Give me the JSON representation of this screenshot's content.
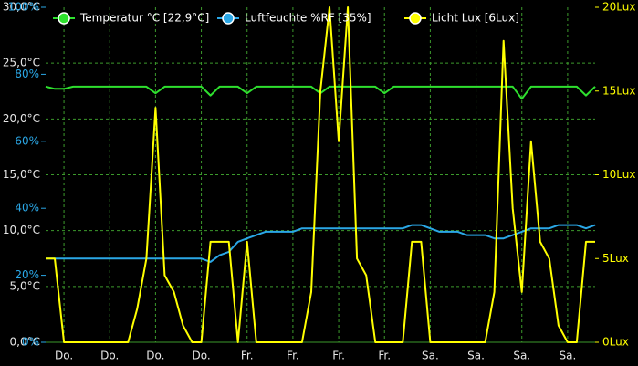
{
  "chart_data": {
    "type": "line",
    "xlim": [
      0,
      60
    ],
    "xticks": [
      {
        "value": 2,
        "label": "Do."
      },
      {
        "value": 7,
        "label": "Do."
      },
      {
        "value": 12,
        "label": "Do."
      },
      {
        "value": 17,
        "label": "Do."
      },
      {
        "value": 22,
        "label": "Fr."
      },
      {
        "value": 27,
        "label": "Fr."
      },
      {
        "value": 32,
        "label": "Fr."
      },
      {
        "value": 37,
        "label": "Fr."
      },
      {
        "value": 42,
        "label": "Sa."
      },
      {
        "value": 47,
        "label": "Sa."
      },
      {
        "value": 52,
        "label": "Sa."
      },
      {
        "value": 57,
        "label": "Sa."
      }
    ],
    "ylim": [
      0,
      30
    ],
    "yticks": [
      {
        "value": 0,
        "label": "0,0°C"
      },
      {
        "value": 5,
        "label": "5,0°C"
      },
      {
        "value": 10,
        "label": "10,0°C"
      },
      {
        "value": 15,
        "label": "15,0°C"
      },
      {
        "value": 20,
        "label": "20,0°C"
      },
      {
        "value": 25,
        "label": "25,0°C"
      },
      {
        "value": 30,
        "label": "30,0°C"
      }
    ],
    "y3lim": [
      0,
      100
    ],
    "y3ticks": [
      {
        "value": 0,
        "label": "0%"
      },
      {
        "value": 20,
        "label": "20%"
      },
      {
        "value": 40,
        "label": "40%"
      },
      {
        "value": 60,
        "label": "60%"
      },
      {
        "value": 80,
        "label": "80%"
      },
      {
        "value": 100,
        "label": "100%"
      }
    ],
    "y2lim": [
      0,
      20
    ],
    "y2ticks": [
      {
        "value": 0,
        "label": "0Lux"
      },
      {
        "value": 5,
        "label": "5Lux"
      },
      {
        "value": 10,
        "label": "10Lux"
      },
      {
        "value": 15,
        "label": "15Lux"
      },
      {
        "value": 20,
        "label": "20Lux"
      }
    ],
    "grid": true,
    "series": [
      {
        "name": "Temperatur °C [22,9°C]",
        "color": "#2ee02e",
        "axis": "y",
        "values": [
          22.9,
          22.7,
          22.7,
          22.9,
          22.9,
          22.9,
          22.9,
          22.9,
          22.9,
          22.9,
          22.9,
          22.9,
          22.3,
          22.9,
          22.9,
          22.9,
          22.9,
          22.9,
          22.1,
          22.9,
          22.9,
          22.9,
          22.3,
          22.9,
          22.9,
          22.9,
          22.9,
          22.9,
          22.9,
          22.9,
          22.3,
          22.9,
          22.9,
          22.9,
          22.9,
          22.9,
          22.9,
          22.3,
          22.9,
          22.9,
          22.9,
          22.9,
          22.9,
          22.9,
          22.9,
          22.9,
          22.9,
          22.9,
          22.9,
          22.9,
          22.9,
          22.9,
          21.8,
          22.9,
          22.9,
          22.9,
          22.9,
          22.9,
          22.9,
          22.1,
          22.9
        ]
      },
      {
        "name": "Luftfeuchte %RF [35%]",
        "color": "#2aa7e6",
        "axis": "y3",
        "values": [
          25,
          25,
          25,
          25,
          25,
          25,
          25,
          25,
          25,
          25,
          25,
          25,
          25,
          25,
          25,
          25,
          25,
          25,
          24,
          26,
          27,
          30,
          31,
          32,
          33,
          33,
          33,
          33,
          34,
          34,
          34,
          34,
          34,
          34,
          34,
          34,
          34,
          34,
          34,
          34,
          35,
          35,
          34,
          33,
          33,
          33,
          32,
          32,
          32,
          31,
          31,
          32,
          33,
          34,
          34,
          34,
          35,
          35,
          35,
          34,
          35
        ]
      },
      {
        "name": "Licht Lux [6Lux]",
        "color": "#ffff00",
        "axis": "y2",
        "values": [
          5,
          5,
          0,
          0,
          0,
          0,
          0,
          0,
          0,
          0,
          2,
          5,
          14,
          4,
          3,
          1,
          0,
          0,
          6,
          6,
          6,
          0,
          6,
          0,
          0,
          0,
          0,
          0,
          0,
          3,
          15,
          20,
          12,
          20,
          5,
          4,
          0,
          0,
          0,
          0,
          6,
          6,
          0,
          0,
          0,
          0,
          0,
          0,
          0,
          3,
          18,
          8,
          3,
          12,
          6,
          5,
          1,
          0,
          0,
          6,
          6
        ]
      }
    ]
  }
}
